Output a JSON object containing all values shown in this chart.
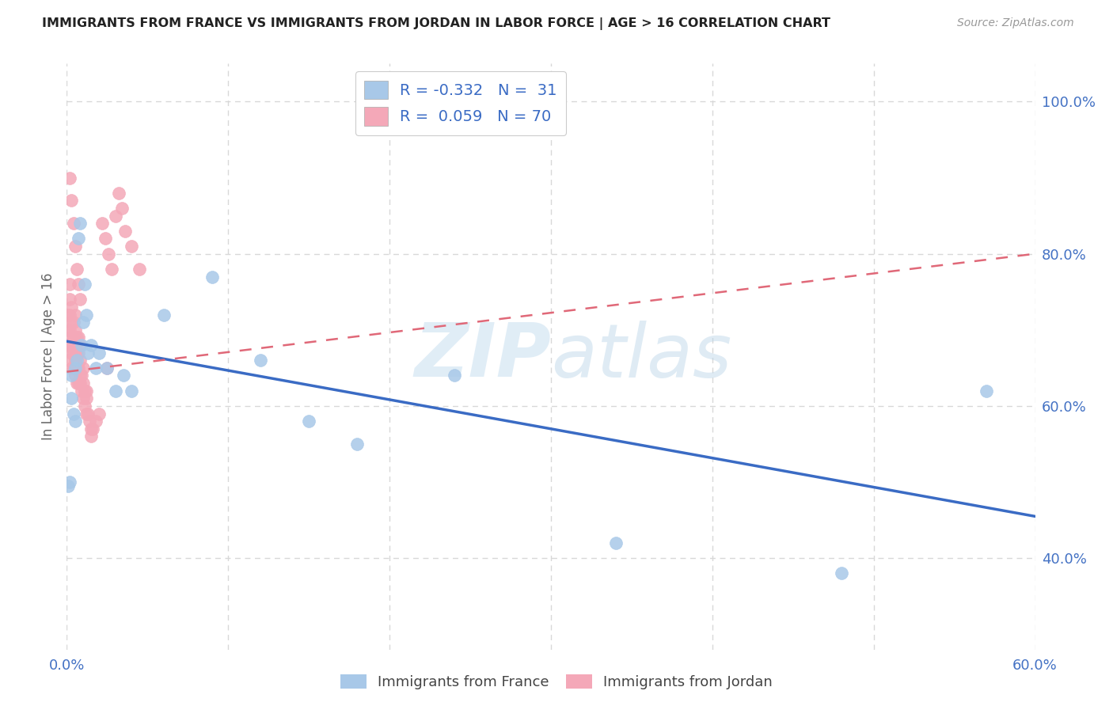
{
  "title": "IMMIGRANTS FROM FRANCE VS IMMIGRANTS FROM JORDAN IN LABOR FORCE | AGE > 16 CORRELATION CHART",
  "source": "Source: ZipAtlas.com",
  "ylabel": "In Labor Force | Age > 16",
  "xlim": [
    0.0,
    0.6
  ],
  "ylim": [
    0.28,
    1.05
  ],
  "xtick_positions": [
    0.0,
    0.1,
    0.2,
    0.3,
    0.4,
    0.5,
    0.6
  ],
  "xticklabels": [
    "0.0%",
    "",
    "",
    "",
    "",
    "",
    "60.0%"
  ],
  "yticks_right": [
    0.4,
    0.6,
    0.8,
    1.0
  ],
  "ytick_labels_right": [
    "40.0%",
    "60.0%",
    "80.0%",
    "100.0%"
  ],
  "france_color": "#a8c8e8",
  "jordan_color": "#f4a8b8",
  "france_line_color": "#3a6bc4",
  "jordan_line_color": "#e06878",
  "france_scatter_x": [
    0.001,
    0.002,
    0.003,
    0.003,
    0.004,
    0.005,
    0.005,
    0.006,
    0.007,
    0.008,
    0.009,
    0.01,
    0.011,
    0.012,
    0.013,
    0.015,
    0.018,
    0.02,
    0.025,
    0.03,
    0.035,
    0.04,
    0.06,
    0.09,
    0.12,
    0.15,
    0.18,
    0.24,
    0.34,
    0.48,
    0.57
  ],
  "france_scatter_y": [
    0.495,
    0.5,
    0.61,
    0.64,
    0.59,
    0.58,
    0.65,
    0.66,
    0.82,
    0.84,
    0.68,
    0.71,
    0.76,
    0.72,
    0.67,
    0.68,
    0.65,
    0.67,
    0.65,
    0.62,
    0.64,
    0.62,
    0.72,
    0.77,
    0.66,
    0.58,
    0.55,
    0.64,
    0.42,
    0.38,
    0.62
  ],
  "jordan_scatter_x": [
    0.001,
    0.001,
    0.001,
    0.001,
    0.002,
    0.002,
    0.002,
    0.002,
    0.002,
    0.003,
    0.003,
    0.003,
    0.003,
    0.003,
    0.004,
    0.004,
    0.004,
    0.004,
    0.005,
    0.005,
    0.005,
    0.005,
    0.005,
    0.006,
    0.006,
    0.006,
    0.006,
    0.007,
    0.007,
    0.007,
    0.007,
    0.008,
    0.008,
    0.008,
    0.008,
    0.009,
    0.009,
    0.01,
    0.01,
    0.01,
    0.011,
    0.011,
    0.012,
    0.012,
    0.013,
    0.014,
    0.015,
    0.016,
    0.018,
    0.02,
    0.022,
    0.024,
    0.026,
    0.028,
    0.03,
    0.032,
    0.034,
    0.036,
    0.04,
    0.045,
    0.002,
    0.003,
    0.004,
    0.005,
    0.006,
    0.007,
    0.008,
    0.012,
    0.015,
    0.025
  ],
  "jordan_scatter_y": [
    0.66,
    0.68,
    0.7,
    0.72,
    0.7,
    0.68,
    0.72,
    0.74,
    0.76,
    0.65,
    0.67,
    0.69,
    0.71,
    0.73,
    0.65,
    0.67,
    0.69,
    0.71,
    0.64,
    0.66,
    0.68,
    0.7,
    0.72,
    0.63,
    0.65,
    0.67,
    0.69,
    0.63,
    0.65,
    0.67,
    0.69,
    0.63,
    0.64,
    0.66,
    0.68,
    0.62,
    0.64,
    0.61,
    0.63,
    0.65,
    0.6,
    0.62,
    0.59,
    0.61,
    0.59,
    0.58,
    0.57,
    0.57,
    0.58,
    0.59,
    0.84,
    0.82,
    0.8,
    0.78,
    0.85,
    0.88,
    0.86,
    0.83,
    0.81,
    0.78,
    0.9,
    0.87,
    0.84,
    0.81,
    0.78,
    0.76,
    0.74,
    0.62,
    0.56,
    0.65
  ],
  "france_line_x": [
    0.0,
    0.6
  ],
  "france_line_y": [
    0.685,
    0.455
  ],
  "jordan_line_x": [
    0.0,
    0.6
  ],
  "jordan_line_y": [
    0.645,
    0.8
  ],
  "watermark_zip": "ZIP",
  "watermark_atlas": "atlas",
  "background_color": "#ffffff",
  "grid_color": "#d8d8d8",
  "legend_france": "R = -0.332   N =  31",
  "legend_jordan": "R =  0.059   N = 70",
  "bottom_legend_france": "Immigrants from France",
  "bottom_legend_jordan": "Immigrants from Jordan"
}
